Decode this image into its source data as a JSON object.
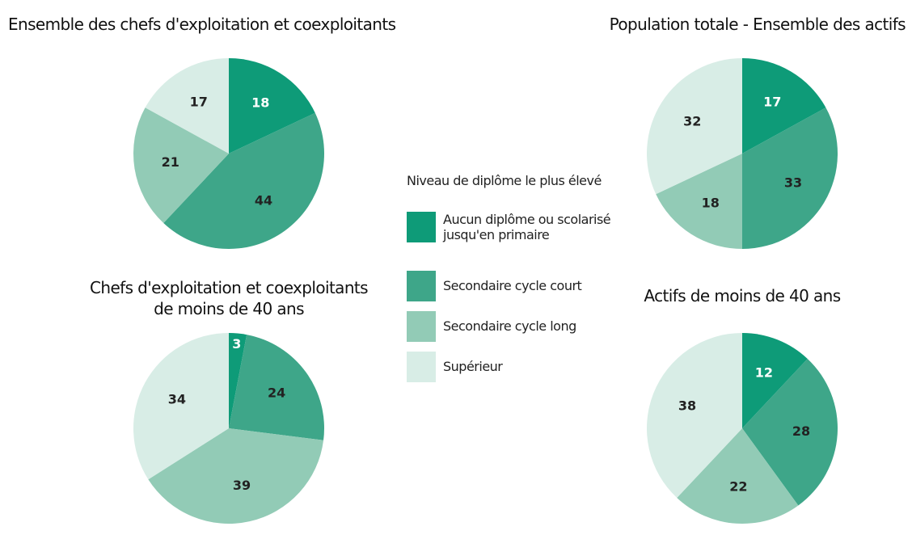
{
  "legend": {
    "title": "Niveau de diplôme le plus élevé",
    "categories": [
      "Aucun diplôme ou scolarisé\njusqu'en primaire",
      "Secondaire cycle court",
      "Secondaire cycle long",
      "Supérieur"
    ],
    "colors": [
      "#0e9b78",
      "#3ea689",
      "#92cbb6",
      "#d8ede6"
    ]
  },
  "chart_data": [
    {
      "type": "pie",
      "title": "Ensemble des chefs d'exploitation et coexploitants",
      "values": [
        18,
        44,
        21,
        17
      ]
    },
    {
      "type": "pie",
      "title": "Population totale - Ensemble des actifs",
      "values": [
        17,
        33,
        18,
        32
      ]
    },
    {
      "type": "pie",
      "title": "Chefs d'exploitation et coexploitants\nde moins de 40 ans",
      "values": [
        3,
        24,
        39,
        34
      ]
    },
    {
      "type": "pie",
      "title": "Actifs de moins de 40 ans",
      "values": [
        12,
        28,
        22,
        38
      ]
    }
  ]
}
